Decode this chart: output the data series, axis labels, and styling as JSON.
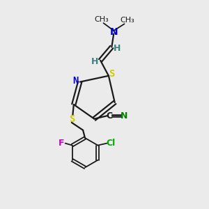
{
  "bg_color": "#ebebeb",
  "bond_color": "#1a1a1a",
  "S_color": "#cccc00",
  "N_color": "#0000cc",
  "F_color": "#cc00cc",
  "Cl_color": "#00aa00",
  "C_color": "#1a1a1a",
  "CN_color": "#008000",
  "vinyl_H_color": "#3d8080",
  "figsize": [
    3.0,
    3.0
  ],
  "dpi": 100,
  "xlim": [
    0,
    10
  ],
  "ylim": [
    0,
    10
  ]
}
